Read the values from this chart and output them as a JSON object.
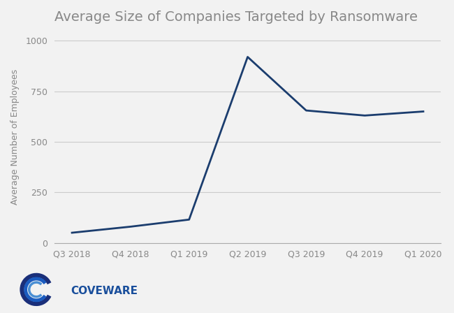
{
  "title": "Average Size of Companies Targeted by Ransomware",
  "xlabel": "",
  "ylabel": "Average Number of Employees",
  "categories": [
    "Q3 2018",
    "Q4 2018",
    "Q1 2019",
    "Q2 2019",
    "Q3 2019",
    "Q4 2019",
    "Q1 2020"
  ],
  "values": [
    50,
    80,
    115,
    920,
    655,
    630,
    650
  ],
  "line_color": "#1b3d6e",
  "line_width": 2.0,
  "ylim": [
    0,
    1050
  ],
  "yticks": [
    0,
    250,
    500,
    750,
    1000
  ],
  "background_color": "#f2f2f2",
  "plot_bg_color": "#f2f2f2",
  "grid_color": "#cccccc",
  "title_fontsize": 14,
  "axis_label_fontsize": 9,
  "tick_fontsize": 9,
  "title_color": "#888888",
  "tick_color": "#888888",
  "logo_text": "COVEWARE",
  "logo_text_color": "#1a4f9c",
  "logo_font_size": 11,
  "logo_arcs": [
    {
      "r": 0.9,
      "lw": 5.0,
      "color": "#1a3a8f",
      "t1": 20,
      "t2": 340
    },
    {
      "r": 0.7,
      "lw": 4.0,
      "color": "#2060b0",
      "t1": 30,
      "t2": 330
    },
    {
      "r": 0.5,
      "lw": 3.0,
      "color": "#4a90d9",
      "t1": 40,
      "t2": 320
    }
  ]
}
